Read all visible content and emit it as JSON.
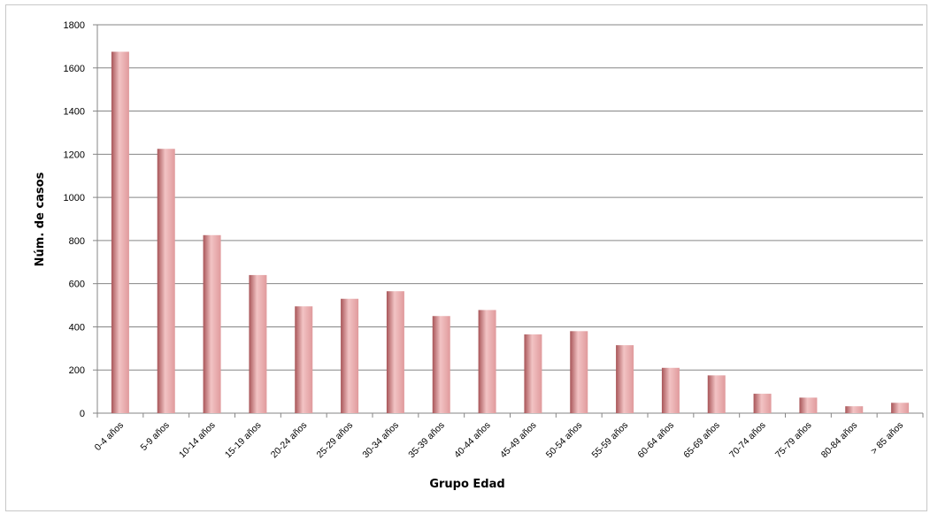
{
  "chart_data": {
    "type": "bar",
    "title": "",
    "xlabel": "Grupo Edad",
    "ylabel": "Núm. de casos",
    "ylim": [
      0,
      1800
    ],
    "yticks": [
      0,
      200,
      400,
      600,
      800,
      1000,
      1200,
      1400,
      1600,
      1800
    ],
    "grid": true,
    "legend": "none",
    "categories": [
      "0-4 años",
      "5-9 años",
      "10-14 años",
      "15-19 años",
      "20-24 años",
      "25-29 años",
      "30-34 años",
      "35-39 años",
      "40-44 años",
      "45-49 años",
      "50-54 años",
      "55-59 años",
      "60-64 años",
      "65-69 años",
      "70-74 años",
      "75-79 años",
      "80-84 años",
      "> 85 años"
    ],
    "values": [
      1675,
      1225,
      825,
      640,
      495,
      530,
      565,
      450,
      478,
      365,
      380,
      315,
      210,
      175,
      90,
      72,
      32,
      48
    ],
    "colors": {
      "bar": "#e09a9c",
      "bar_dark": "#a85558",
      "bar_light": "#f2c3c4",
      "grid": "#868686",
      "axis": "#868686"
    }
  }
}
